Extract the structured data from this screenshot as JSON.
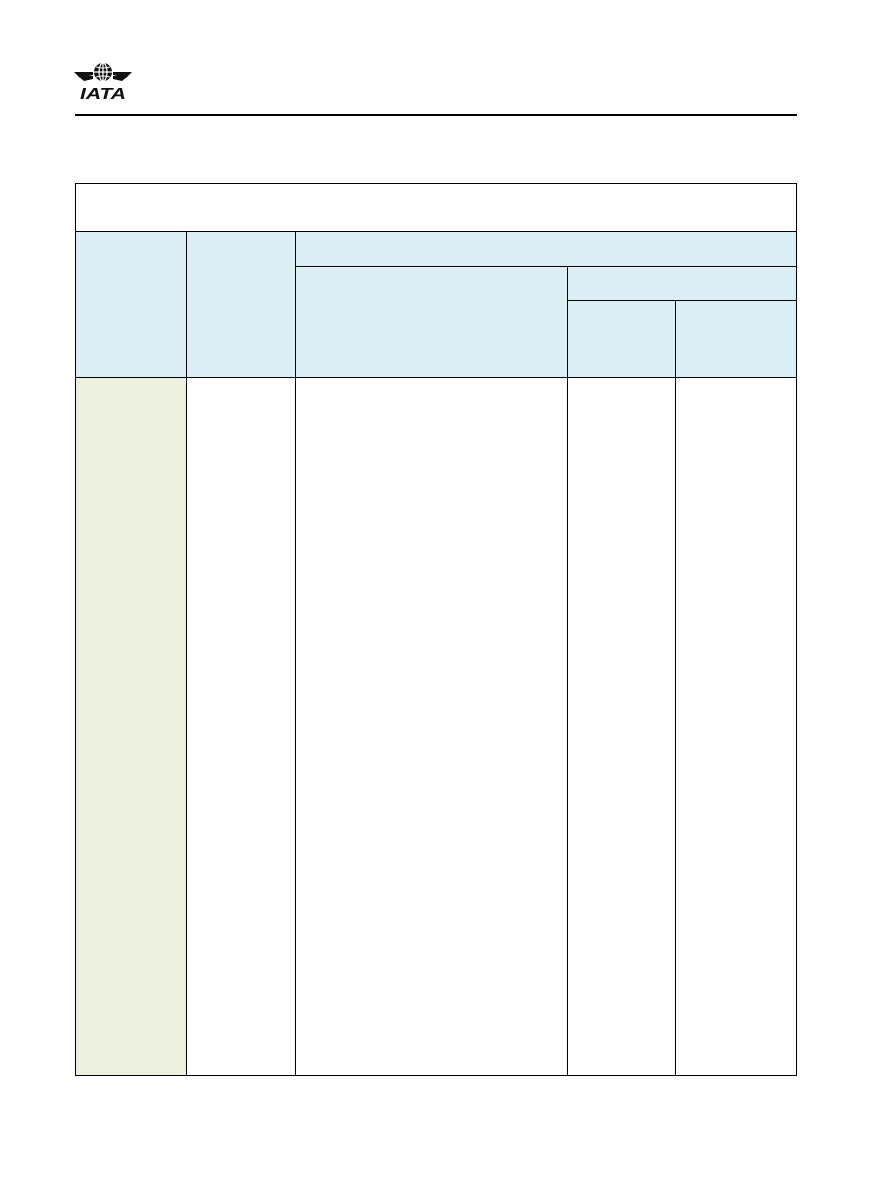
{
  "header": {
    "logo": {
      "icon": "iata-globe-wings-logo",
      "text": "IATA"
    }
  },
  "table": {
    "title": "",
    "colors": {
      "header_fill": "#dbeef3",
      "first_column_fill": "#ebf1de",
      "border": "#000000"
    },
    "header": {
      "col1": "",
      "col2": "",
      "group": "",
      "group_sub1": "",
      "group_subgroup": "",
      "group_subgroup_a": "",
      "group_subgroup_b": ""
    },
    "rows": [
      [
        "",
        "",
        "",
        "",
        ""
      ]
    ]
  }
}
